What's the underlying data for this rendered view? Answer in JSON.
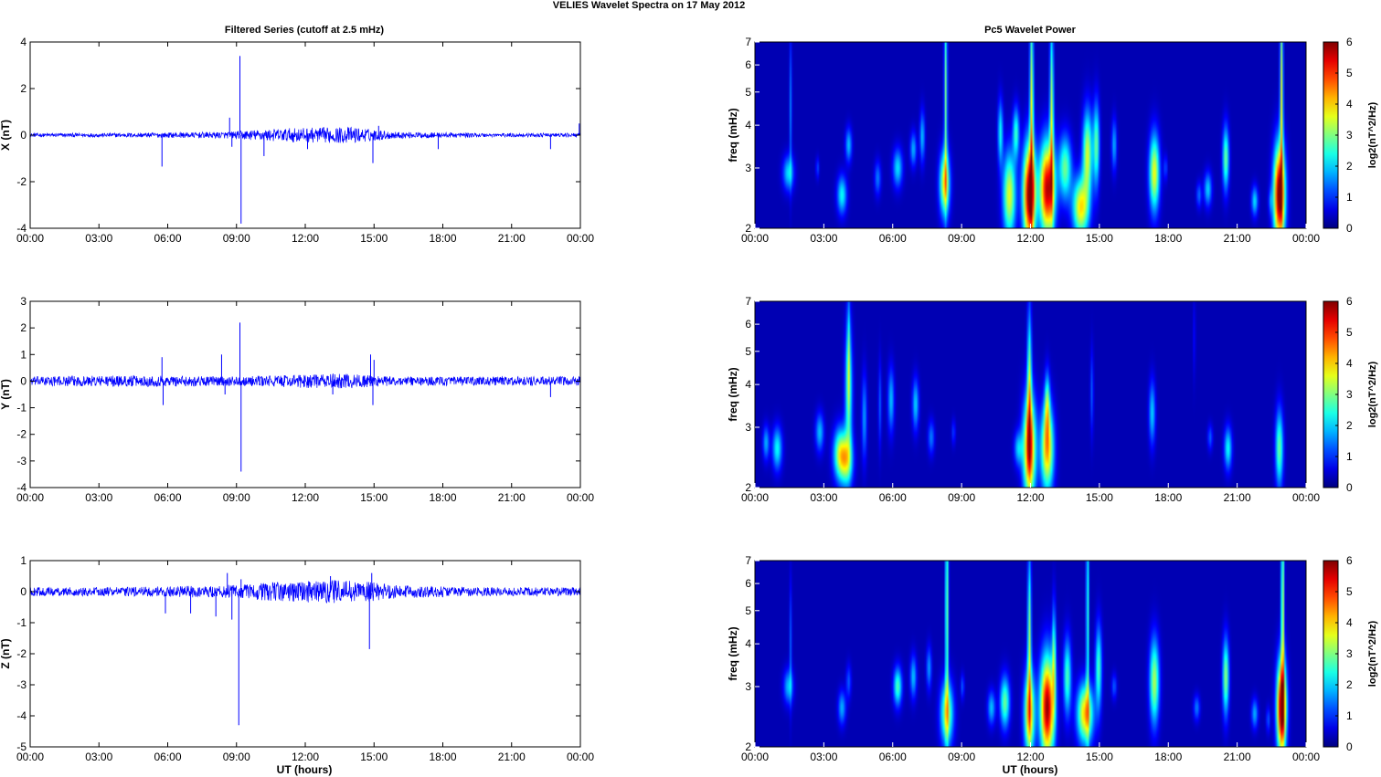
{
  "figure": {
    "title": "VELIES Wavelet Spectra on 17 May       2012",
    "left_column_title": "Filtered Series (cutoff at 2.5 mHz)",
    "right_column_title": "Pc5 Wavelet Power",
    "xlabel": "UT (hours)"
  },
  "colors": {
    "series_line": "#0000ff",
    "spectrogram_background": "#00008f",
    "colormap": "jet"
  },
  "chart_data": [
    {
      "type": "line",
      "name": "filtered-x",
      "ylabel": "X (nT)",
      "x_ticks": [
        "00:00",
        "03:00",
        "06:00",
        "09:00",
        "12:00",
        "15:00",
        "18:00",
        "21:00",
        "00:00"
      ],
      "xlim_hours": [
        0,
        24
      ],
      "ylim": [
        -4,
        4
      ],
      "y_ticks": [
        "-4",
        "-2",
        "0",
        "2",
        "4"
      ],
      "noise_amplitude_by_hour": [
        [
          0,
          0.06
        ],
        [
          3,
          0.06
        ],
        [
          6,
          0.08
        ],
        [
          8.5,
          0.1
        ],
        [
          9.5,
          0.15
        ],
        [
          11.5,
          0.22
        ],
        [
          14,
          0.25
        ],
        [
          16,
          0.1
        ],
        [
          20,
          0.06
        ],
        [
          24,
          0.06
        ]
      ],
      "spikes": [
        [
          5.75,
          -1.35
        ],
        [
          8.7,
          0.75
        ],
        [
          8.8,
          -0.5
        ],
        [
          9.15,
          3.4
        ],
        [
          9.2,
          -3.8
        ],
        [
          10.2,
          -0.9
        ],
        [
          12.1,
          -0.6
        ],
        [
          14.95,
          -1.2
        ],
        [
          15.2,
          0.4
        ],
        [
          17.8,
          -0.6
        ],
        [
          22.7,
          -0.6
        ],
        [
          23.95,
          0.5
        ],
        [
          24,
          -1.35
        ]
      ]
    },
    {
      "type": "line",
      "name": "filtered-y",
      "ylabel": "Y (nT)",
      "x_ticks": [
        "00:00",
        "03:00",
        "06:00",
        "09:00",
        "12:00",
        "15:00",
        "18:00",
        "21:00",
        "00:00"
      ],
      "xlim_hours": [
        0,
        24
      ],
      "ylim": [
        -4,
        3
      ],
      "y_ticks": [
        "-4",
        "-3",
        "-2",
        "-1",
        "0",
        "1",
        "2",
        "3"
      ],
      "noise_amplitude_by_hour": [
        [
          0,
          0.12
        ],
        [
          3,
          0.15
        ],
        [
          6,
          0.15
        ],
        [
          9,
          0.12
        ],
        [
          12,
          0.18
        ],
        [
          14,
          0.2
        ],
        [
          16,
          0.12
        ],
        [
          20,
          0.12
        ],
        [
          24,
          0.12
        ]
      ],
      "spikes": [
        [
          5.75,
          0.9
        ],
        [
          5.8,
          -0.9
        ],
        [
          8.35,
          1.0
        ],
        [
          8.5,
          -0.5
        ],
        [
          9.15,
          2.2
        ],
        [
          9.2,
          -3.4
        ],
        [
          13.2,
          -0.5
        ],
        [
          14.85,
          1.0
        ],
        [
          14.95,
          -0.9
        ],
        [
          15.0,
          0.8
        ],
        [
          22.7,
          -0.6
        ],
        [
          24,
          -0.4
        ]
      ]
    },
    {
      "type": "line",
      "name": "filtered-z",
      "ylabel": "Z (nT)",
      "x_ticks": [
        "00:00",
        "03:00",
        "06:00",
        "09:00",
        "12:00",
        "15:00",
        "18:00",
        "21:00",
        "00:00"
      ],
      "xlim_hours": [
        0,
        24
      ],
      "ylim": [
        -5,
        1
      ],
      "y_ticks": [
        "-5",
        "-4",
        "-3",
        "-2",
        "-1",
        "0",
        "1"
      ],
      "noise_amplitude_by_hour": [
        [
          0,
          0.1
        ],
        [
          3,
          0.1
        ],
        [
          6,
          0.12
        ],
        [
          8.5,
          0.15
        ],
        [
          10,
          0.2
        ],
        [
          12,
          0.25
        ],
        [
          14,
          0.28
        ],
        [
          16,
          0.15
        ],
        [
          20,
          0.1
        ],
        [
          24,
          0.1
        ]
      ],
      "spikes": [
        [
          5.9,
          -0.7
        ],
        [
          7,
          -0.7
        ],
        [
          8.1,
          -0.8
        ],
        [
          8.6,
          0.6
        ],
        [
          8.8,
          -0.9
        ],
        [
          9.1,
          -4.3
        ],
        [
          9.2,
          0.4
        ],
        [
          13.1,
          0.5
        ],
        [
          14.8,
          -1.85
        ],
        [
          14.9,
          0.6
        ],
        [
          24,
          -1.6
        ]
      ]
    },
    {
      "type": "heatmap",
      "name": "wavelet-power-x",
      "ylabel": "freq (mHz)",
      "y_scale": "log",
      "ylim": [
        2,
        7
      ],
      "y_ticks": [
        "2",
        "3",
        "4",
        "5",
        "6",
        "7"
      ],
      "x_ticks": [
        "00:00",
        "03:00",
        "06:00",
        "09:00",
        "12:00",
        "15:00",
        "18:00",
        "21:00",
        "00:00"
      ],
      "xlim_hours": [
        0,
        24.7
      ],
      "colorbar": {
        "label": "log2(nT^2/Hz)",
        "range": [
          0,
          6
        ],
        "ticks": [
          "0",
          "1",
          "2",
          "3",
          "4",
          "5",
          "6"
        ]
      },
      "blobs": [
        [
          1.5,
          2.9,
          0.17,
          0.08,
          1.8
        ],
        [
          1.6,
          4.5,
          0.04,
          0.35,
          1.2
        ],
        [
          2.8,
          3.0,
          0.05,
          0.05,
          0.9
        ],
        [
          3.9,
          2.5,
          0.15,
          0.09,
          2.0
        ],
        [
          4.2,
          3.5,
          0.1,
          0.08,
          1.6
        ],
        [
          5.5,
          2.8,
          0.1,
          0.08,
          1.2
        ],
        [
          6.4,
          3.0,
          0.15,
          0.09,
          1.8
        ],
        [
          7.1,
          3.4,
          0.1,
          0.08,
          1.5
        ],
        [
          7.5,
          3.7,
          0.08,
          0.12,
          1.6
        ],
        [
          8.5,
          2.7,
          0.16,
          0.15,
          3.4
        ],
        [
          8.55,
          5.0,
          0.05,
          0.5,
          2.6
        ],
        [
          11.0,
          3.8,
          0.08,
          0.15,
          2.0
        ],
        [
          11.4,
          2.5,
          0.2,
          0.2,
          3.3
        ],
        [
          11.7,
          3.8,
          0.1,
          0.12,
          2.2
        ],
        [
          12.3,
          2.5,
          0.2,
          0.24,
          5.8
        ],
        [
          12.4,
          4.5,
          0.06,
          0.5,
          3.3
        ],
        [
          13.1,
          2.6,
          0.24,
          0.22,
          5.4
        ],
        [
          13.3,
          4.3,
          0.06,
          0.45,
          3.0
        ],
        [
          13.9,
          3.0,
          0.2,
          0.15,
          2.6
        ],
        [
          14.6,
          2.3,
          0.25,
          0.14,
          3.6
        ],
        [
          14.9,
          3.3,
          0.15,
          0.2,
          3.2
        ],
        [
          15.3,
          3.5,
          0.1,
          0.2,
          2.5
        ],
        [
          16.1,
          3.5,
          0.08,
          0.12,
          1.5
        ],
        [
          17.9,
          2.9,
          0.16,
          0.18,
          3.4
        ],
        [
          18.4,
          3.0,
          0.06,
          0.06,
          0.9
        ],
        [
          19.9,
          2.5,
          0.08,
          0.06,
          1.1
        ],
        [
          20.3,
          2.6,
          0.12,
          0.08,
          1.7
        ],
        [
          21.1,
          3.2,
          0.1,
          0.15,
          2.6
        ],
        [
          22.4,
          2.4,
          0.1,
          0.07,
          1.8
        ],
        [
          23.5,
          2.5,
          0.18,
          0.23,
          5.9
        ],
        [
          23.6,
          5.0,
          0.05,
          0.5,
          3.2
        ],
        [
          23.1,
          2.4,
          0.06,
          0.06,
          0.9
        ]
      ]
    },
    {
      "type": "heatmap",
      "name": "wavelet-power-y",
      "ylabel": "freq (mHz)",
      "y_scale": "log",
      "ylim": [
        2,
        7
      ],
      "y_ticks": [
        "2",
        "3",
        "4",
        "5",
        "6",
        "7"
      ],
      "x_ticks": [
        "00:00",
        "03:00",
        "06:00",
        "09:00",
        "12:00",
        "15:00",
        "18:00",
        "21:00",
        "00:00"
      ],
      "xlim_hours": [
        0,
        24.7
      ],
      "colorbar": {
        "label": "log2(nT^2/Hz)",
        "range": [
          0,
          6
        ],
        "ticks": [
          "0",
          "1",
          "2",
          "3",
          "4",
          "5",
          "6"
        ]
      },
      "blobs": [
        [
          0.5,
          2.7,
          0.1,
          0.08,
          1.5
        ],
        [
          1.0,
          2.6,
          0.15,
          0.1,
          2.0
        ],
        [
          2.9,
          2.9,
          0.13,
          0.09,
          1.6
        ],
        [
          3.8,
          2.5,
          0.2,
          0.12,
          2.8
        ],
        [
          4.1,
          2.4,
          0.2,
          0.12,
          2.6
        ],
        [
          4.2,
          3.8,
          0.12,
          0.3,
          2.2
        ],
        [
          4.2,
          5.0,
          0.05,
          0.3,
          1.5
        ],
        [
          4.9,
          3.2,
          0.08,
          0.2,
          1.4
        ],
        [
          5.6,
          3.5,
          0.05,
          0.2,
          1.0
        ],
        [
          6.1,
          3.6,
          0.1,
          0.15,
          1.6
        ],
        [
          7.2,
          3.5,
          0.1,
          0.12,
          1.7
        ],
        [
          7.9,
          2.8,
          0.1,
          0.08,
          1.2
        ],
        [
          8.9,
          2.9,
          0.06,
          0.06,
          0.8
        ],
        [
          11.8,
          2.6,
          0.13,
          0.08,
          1.6
        ],
        [
          12.3,
          2.6,
          0.2,
          0.24,
          4.8
        ],
        [
          12.3,
          4.0,
          0.07,
          0.35,
          2.8
        ],
        [
          13.1,
          2.6,
          0.2,
          0.2,
          4.0
        ],
        [
          13.1,
          3.5,
          0.08,
          0.15,
          2.2
        ],
        [
          15.1,
          3.8,
          0.05,
          0.2,
          1.0
        ],
        [
          17.8,
          3.3,
          0.1,
          0.15,
          1.7
        ],
        [
          20.4,
          2.8,
          0.08,
          0.06,
          1.0
        ],
        [
          21.2,
          2.6,
          0.12,
          0.1,
          2.0
        ],
        [
          23.5,
          2.6,
          0.12,
          0.18,
          2.6
        ],
        [
          19.7,
          5.5,
          0.03,
          0.2,
          0.7
        ]
      ]
    },
    {
      "type": "heatmap",
      "name": "wavelet-power-z",
      "ylabel": "freq (mHz)",
      "y_scale": "log",
      "ylim": [
        2,
        7
      ],
      "y_ticks": [
        "2",
        "3",
        "4",
        "5",
        "6",
        "7"
      ],
      "x_ticks": [
        "00:00",
        "03:00",
        "06:00",
        "09:00",
        "12:00",
        "15:00",
        "18:00",
        "21:00",
        "00:00"
      ],
      "xlim_hours": [
        0,
        24.7
      ],
      "colorbar": {
        "label": "log2(nT^2/Hz)",
        "range": [
          0,
          6
        ],
        "ticks": [
          "0",
          "1",
          "2",
          "3",
          "4",
          "5",
          "6"
        ]
      },
      "blobs": [
        [
          1.5,
          3.0,
          0.15,
          0.08,
          1.6
        ],
        [
          1.6,
          4.0,
          0.04,
          0.3,
          1.0
        ],
        [
          3.9,
          2.6,
          0.12,
          0.08,
          1.5
        ],
        [
          4.2,
          3.1,
          0.08,
          0.08,
          1.0
        ],
        [
          6.4,
          3.0,
          0.13,
          0.09,
          2.4
        ],
        [
          7.1,
          3.2,
          0.1,
          0.1,
          1.6
        ],
        [
          7.8,
          3.4,
          0.08,
          0.1,
          1.4
        ],
        [
          8.6,
          2.5,
          0.2,
          0.15,
          3.0
        ],
        [
          8.6,
          5.0,
          0.05,
          0.6,
          2.8
        ],
        [
          9.3,
          3.0,
          0.06,
          0.06,
          1.0
        ],
        [
          10.6,
          2.6,
          0.12,
          0.08,
          1.6
        ],
        [
          11.2,
          2.7,
          0.15,
          0.12,
          2.6
        ],
        [
          12.3,
          2.5,
          0.17,
          0.2,
          3.8
        ],
        [
          12.3,
          4.2,
          0.06,
          0.4,
          2.8
        ],
        [
          13.1,
          2.6,
          0.22,
          0.24,
          5.6
        ],
        [
          13.4,
          3.6,
          0.06,
          0.25,
          2.4
        ],
        [
          14.0,
          3.2,
          0.12,
          0.18,
          2.4
        ],
        [
          14.8,
          2.5,
          0.25,
          0.14,
          3.8
        ],
        [
          14.9,
          4.8,
          0.04,
          0.6,
          2.6
        ],
        [
          15.4,
          3.4,
          0.1,
          0.2,
          2.4
        ],
        [
          16.1,
          3.0,
          0.08,
          0.06,
          1.0
        ],
        [
          17.9,
          3.1,
          0.15,
          0.2,
          3.0
        ],
        [
          19.8,
          2.6,
          0.1,
          0.06,
          1.2
        ],
        [
          21.1,
          3.2,
          0.1,
          0.18,
          2.8
        ],
        [
          22.4,
          2.5,
          0.1,
          0.07,
          1.5
        ],
        [
          23.0,
          2.4,
          0.06,
          0.06,
          1.0
        ],
        [
          23.6,
          2.6,
          0.15,
          0.22,
          5.9
        ],
        [
          23.65,
          5.0,
          0.05,
          0.5,
          3.2
        ]
      ]
    }
  ]
}
